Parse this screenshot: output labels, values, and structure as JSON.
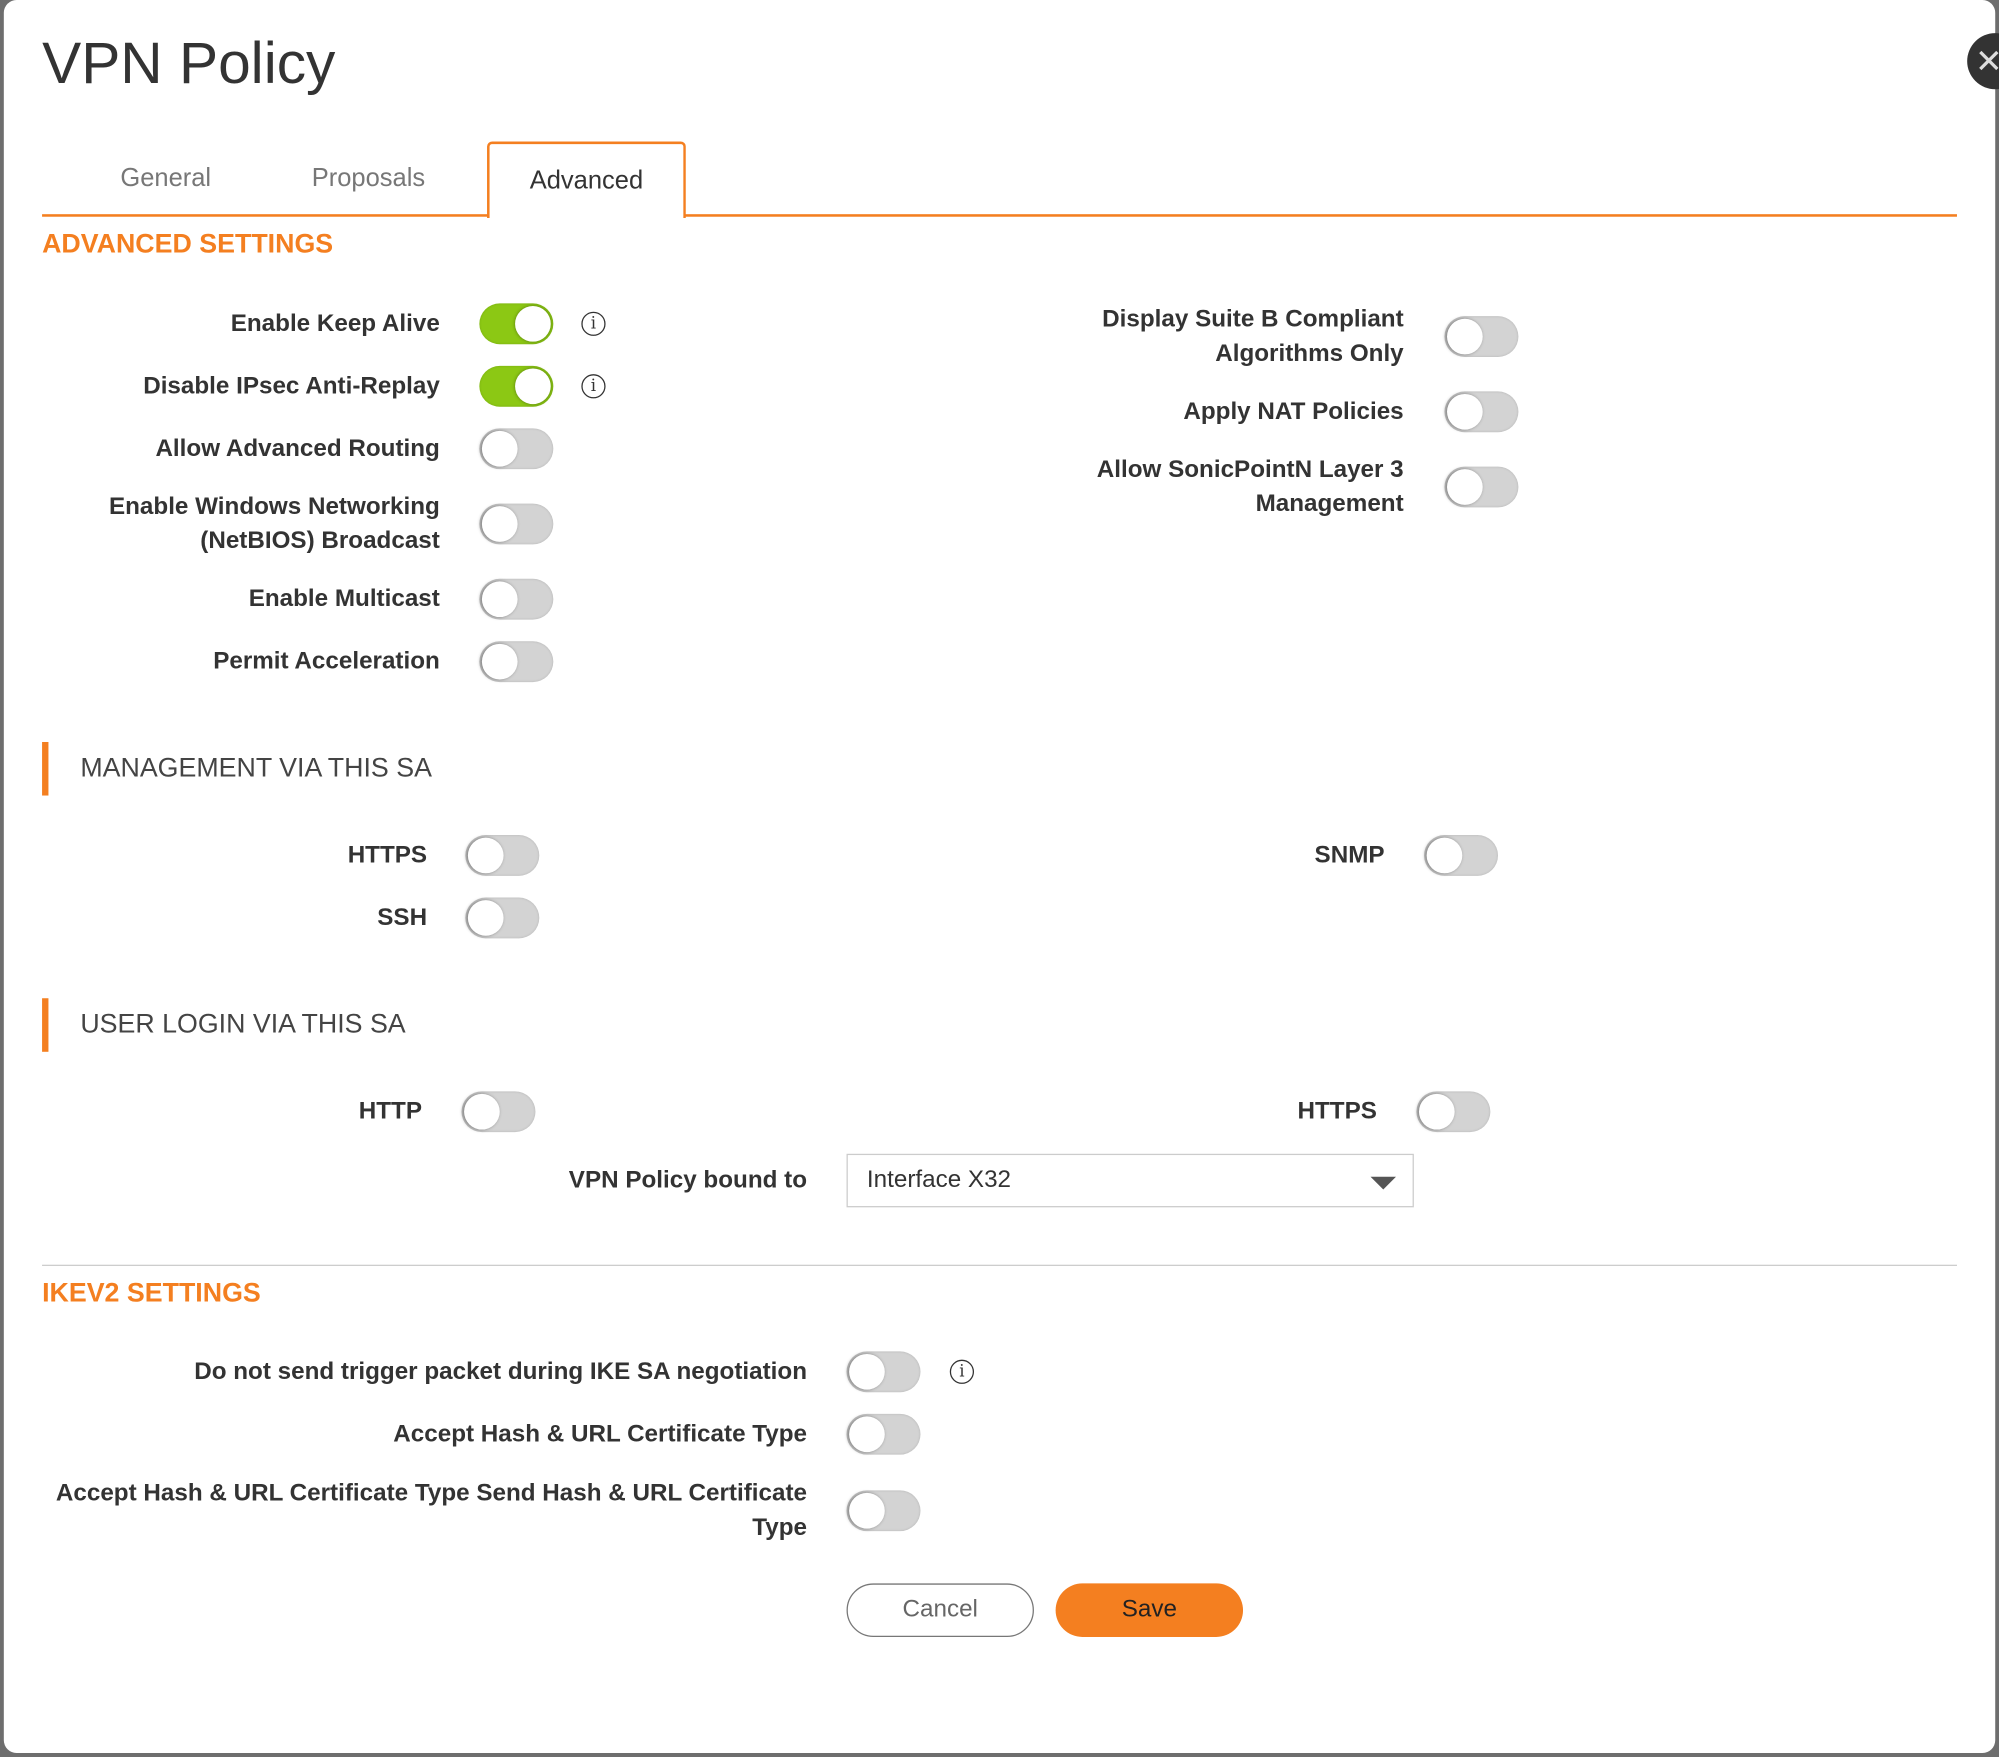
{
  "title": "VPN Policy",
  "close_icon": "close-x-icon",
  "tabs": [
    {
      "label": "General",
      "active": false
    },
    {
      "label": "Proposals",
      "active": false
    },
    {
      "label": "Advanced",
      "active": true
    }
  ],
  "colors": {
    "accent": "#f47f20",
    "toggle_on": "#8cc814",
    "toggle_off": "#d3d3d3"
  },
  "advanced": {
    "heading": "ADVANCED SETTINGS",
    "left": [
      {
        "label": "Enable Keep Alive",
        "on": true,
        "info": true
      },
      {
        "label": "Disable IPsec Anti-Replay",
        "on": true,
        "info": true
      },
      {
        "label": "Allow Advanced Routing",
        "on": false
      },
      {
        "label": "Enable Windows Networking (NetBIOS) Broadcast",
        "on": false
      },
      {
        "label": "Enable Multicast",
        "on": false
      },
      {
        "label": "Permit Acceleration",
        "on": false
      }
    ],
    "right": [
      {
        "label": "Display Suite B Compliant Algorithms Only",
        "on": false
      },
      {
        "label": "Apply NAT Policies",
        "on": false
      },
      {
        "label": "Allow SonicPointN Layer 3 Management",
        "on": false
      }
    ]
  },
  "management": {
    "heading": "MANAGEMENT VIA THIS SA",
    "https": {
      "label": "HTTPS",
      "on": false
    },
    "ssh": {
      "label": "SSH",
      "on": false
    },
    "snmp": {
      "label": "SNMP",
      "on": false
    }
  },
  "user_login": {
    "heading": "USER LOGIN VIA THIS SA",
    "http": {
      "label": "HTTP",
      "on": false
    },
    "https": {
      "label": "HTTPS",
      "on": false
    },
    "bound_label": "VPN Policy bound to",
    "bound_value": "Interface X32"
  },
  "ikev2": {
    "heading": "IKEV2 SETTINGS",
    "rows": [
      {
        "label": "Do not send trigger packet during IKE SA negotiation",
        "on": false,
        "info": true
      },
      {
        "label": "Accept Hash & URL Certificate Type",
        "on": false
      },
      {
        "label": "Accept Hash & URL Certificate Type Send Hash & URL Certificate Type",
        "on": false
      }
    ]
  },
  "buttons": {
    "cancel": "Cancel",
    "save": "Save"
  },
  "info_glyph": "i"
}
